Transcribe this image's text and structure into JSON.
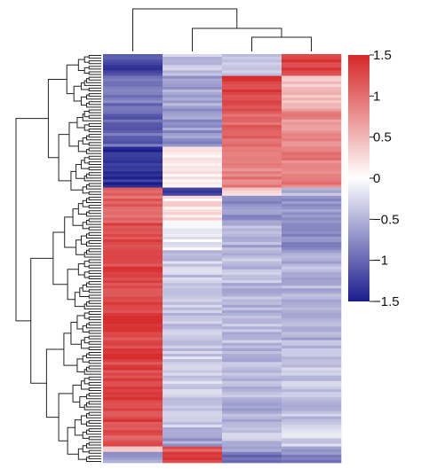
{
  "chart_data": {
    "type": "heatmap",
    "title": "",
    "xlabel": "",
    "ylabel": "",
    "n_columns": 4,
    "n_rows": 150,
    "column_dendrogram": true,
    "row_dendrogram": true,
    "color_scale": {
      "min": -1.5,
      "max": 1.5,
      "low_color": "#1a1c8c",
      "mid_color": "#ffffff",
      "high_color": "#d62728",
      "ticks": [
        "1.5",
        "1",
        "0.5",
        "0",
        "−0.5",
        "−1",
        "−1.5"
      ],
      "tick_values": [
        1.5,
        1,
        0.5,
        0,
        -0.5,
        -1,
        -1.5
      ]
    },
    "row_blocks": [
      {
        "rows": 8,
        "values": [
          -1.2,
          -0.4,
          -0.3,
          1.3
        ]
      },
      {
        "rows": 12,
        "values": [
          -0.9,
          -0.6,
          1.3,
          0.4
        ]
      },
      {
        "rows": 14,
        "values": [
          -1.0,
          -0.7,
          1.1,
          0.8
        ]
      },
      {
        "rows": 15,
        "values": [
          -1.4,
          0.1,
          0.9,
          0.9
        ]
      },
      {
        "rows": 3,
        "values": [
          1.2,
          -1.2,
          0.3,
          -0.5
        ]
      },
      {
        "rows": 10,
        "values": [
          1.1,
          0.2,
          -0.7,
          -0.7
        ]
      },
      {
        "rows": 10,
        "values": [
          1.3,
          -0.1,
          -0.5,
          -0.8
        ]
      },
      {
        "rows": 40,
        "values": [
          1.3,
          -0.35,
          -0.45,
          -0.5
        ]
      },
      {
        "rows": 25,
        "values": [
          1.3,
          -0.3,
          -0.5,
          -0.4
        ]
      },
      {
        "rows": 7,
        "values": [
          1.2,
          -0.6,
          -0.4,
          -0.3
        ]
      },
      {
        "rows": 2,
        "values": [
          0.3,
          1.2,
          -0.6,
          -0.6
        ]
      },
      {
        "rows": 4,
        "values": [
          -0.6,
          1.3,
          -0.9,
          -0.8
        ]
      }
    ]
  }
}
